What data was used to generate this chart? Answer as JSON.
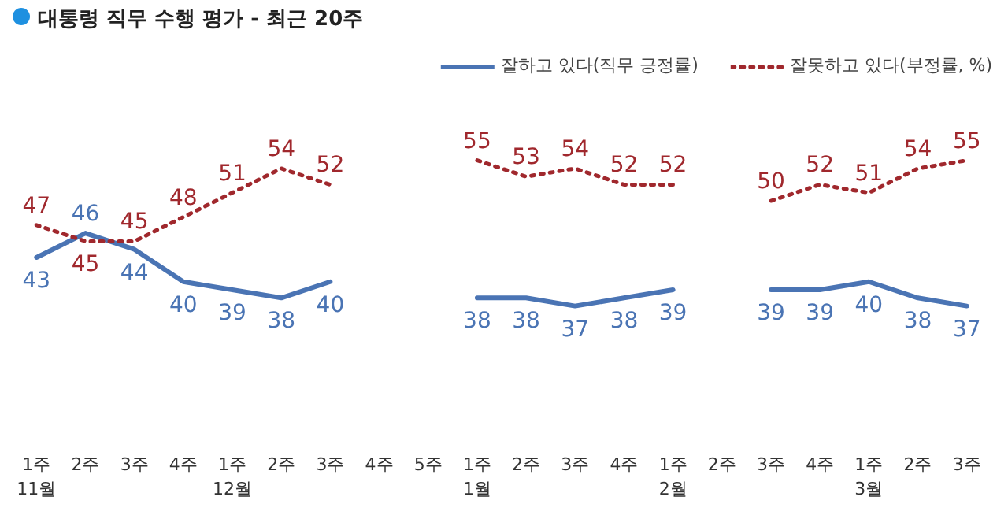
{
  "chart_data": {
    "type": "line",
    "title": "대통령 직무 수행 평가 - 최근 20주",
    "categories": [
      "1주\n11월",
      "2주",
      "3주",
      "4주",
      "1주\n12월",
      "2주",
      "3주",
      "4주",
      "5주",
      "1주\n1월",
      "2주",
      "3주",
      "4주",
      "1주\n2월",
      "2주",
      "3주",
      "4주",
      "1주\n3월",
      "2주",
      "3주"
    ],
    "series": [
      {
        "name": "잘하고 있다(직무 긍정률)",
        "color": "#4a74b4",
        "line_style": "solid",
        "values": [
          43,
          46,
          44,
          40,
          39,
          38,
          40,
          null,
          null,
          38,
          38,
          37,
          38,
          39,
          null,
          39,
          39,
          40,
          38,
          37
        ]
      },
      {
        "name": "잘못하고 있다(부정률, %)",
        "color": "#a0282d",
        "line_style": "dotted",
        "values": [
          47,
          45,
          45,
          48,
          51,
          54,
          52,
          null,
          null,
          55,
          53,
          54,
          52,
          52,
          null,
          50,
          52,
          51,
          54,
          55
        ]
      }
    ],
    "data_labels": true,
    "legend": "top right",
    "grid": false,
    "marker": "none"
  }
}
